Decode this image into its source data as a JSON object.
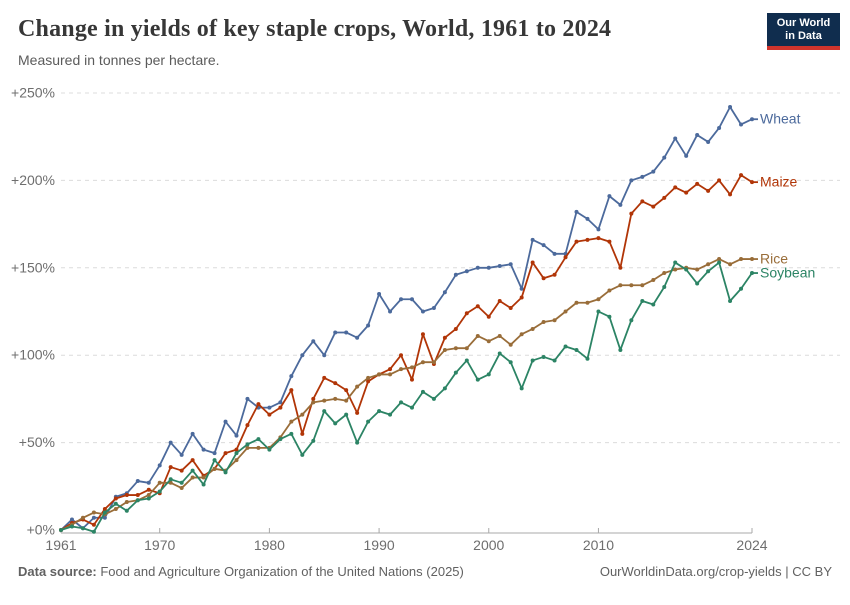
{
  "header": {
    "title": "Change in yields of key staple crops, World, 1961 to 2024",
    "subtitle": "Measured in tonnes per hectare.",
    "logo": {
      "line1": "Our World",
      "line2": "in Data",
      "bg": "#102D4E",
      "stripe": "#D0342C"
    }
  },
  "footer": {
    "source_label": "Data source:",
    "source_text": " Food and Agriculture Organization of the United Nations (2025)",
    "right_text": "OurWorldinData.org/crop-yields | CC BY"
  },
  "chart_data": {
    "type": "line",
    "title": "Change in yields of key staple crops, World, 1961 to 2024",
    "subtitle": "Measured in tonnes per hectare.",
    "unit": "percent change since 1961",
    "xlim": [
      1961,
      2024
    ],
    "ylim": [
      0,
      250
    ],
    "grid": "dashed-horizontal",
    "legend_position": "line-end-labels",
    "xticks": [
      1961,
      1970,
      1980,
      1990,
      2000,
      2010,
      2024
    ],
    "yticks": [
      0,
      50,
      100,
      150,
      200,
      250
    ],
    "ytick_labels": [
      "+0%",
      "+50%",
      "+100%",
      "+150%",
      "+200%",
      "+250%"
    ],
    "x": [
      1961,
      1962,
      1963,
      1964,
      1965,
      1966,
      1967,
      1968,
      1969,
      1970,
      1971,
      1972,
      1973,
      1974,
      1975,
      1976,
      1977,
      1978,
      1979,
      1980,
      1981,
      1982,
      1983,
      1984,
      1985,
      1986,
      1987,
      1988,
      1989,
      1990,
      1991,
      1992,
      1993,
      1994,
      1995,
      1996,
      1997,
      1998,
      1999,
      2000,
      2001,
      2002,
      2003,
      2004,
      2005,
      2006,
      2007,
      2008,
      2009,
      2010,
      2011,
      2012,
      2013,
      2014,
      2015,
      2016,
      2017,
      2018,
      2019,
      2020,
      2021,
      2022,
      2023,
      2024
    ],
    "series": [
      {
        "name": "Wheat",
        "color": "#4C6A9C",
        "values": [
          0,
          6,
          1,
          7,
          7,
          19,
          21,
          28,
          27,
          37,
          50,
          43,
          55,
          46,
          44,
          62,
          54,
          75,
          70,
          70,
          73,
          88,
          100,
          108,
          100,
          113,
          113,
          110,
          117,
          135,
          125,
          132,
          132,
          125,
          127,
          136,
          146,
          148,
          150,
          150,
          151,
          152,
          138,
          166,
          163,
          158,
          158,
          182,
          178,
          172,
          191,
          186,
          200,
          202,
          205,
          213,
          224,
          214,
          226,
          222,
          230,
          242,
          232,
          235
        ]
      },
      {
        "name": "Maize",
        "color": "#B13507",
        "values": [
          0,
          4,
          6,
          3,
          12,
          18,
          20,
          20,
          23,
          21,
          36,
          34,
          40,
          31,
          35,
          44,
          46,
          60,
          72,
          66,
          70,
          80,
          55,
          75,
          87,
          84,
          80,
          67,
          85,
          89,
          92,
          100,
          86,
          112,
          95,
          110,
          115,
          124,
          128,
          122,
          131,
          127,
          133,
          153,
          144,
          146,
          156,
          165,
          166,
          167,
          165,
          150,
          181,
          188,
          185,
          190,
          196,
          193,
          198,
          194,
          200,
          192,
          203,
          199
        ]
      },
      {
        "name": "Rice",
        "color": "#996D39",
        "values": [
          0,
          3,
          7,
          10,
          9,
          12,
          16,
          17,
          20,
          27,
          27,
          24,
          30,
          30,
          35,
          34,
          40,
          47,
          47,
          47,
          53,
          62,
          66,
          73,
          74,
          75,
          74,
          82,
          87,
          89,
          89,
          92,
          93,
          96,
          96,
          103,
          104,
          104,
          111,
          108,
          111,
          106,
          112,
          115,
          119,
          120,
          125,
          130,
          130,
          132,
          137,
          140,
          140,
          140,
          143,
          147,
          149,
          150,
          149,
          152,
          155,
          152,
          155,
          155
        ]
      },
      {
        "name": "Soybean",
        "color": "#2C8465",
        "values": [
          0,
          2,
          1,
          -1,
          10,
          15,
          11,
          17,
          18,
          22,
          29,
          27,
          34,
          26,
          40,
          33,
          44,
          49,
          52,
          46,
          52,
          55,
          43,
          51,
          68,
          61,
          66,
          50,
          62,
          68,
          66,
          73,
          70,
          79,
          75,
          81,
          90,
          97,
          86,
          89,
          101,
          96,
          81,
          97,
          99,
          97,
          105,
          103,
          98,
          125,
          122,
          103,
          120,
          131,
          129,
          139,
          153,
          149,
          141,
          148,
          153,
          131,
          138,
          147
        ]
      }
    ]
  },
  "theme": {
    "grid_color": "#dcdcdc",
    "axis_color": "#a8a8a8",
    "tick_label_color": "#6e6e6e"
  }
}
